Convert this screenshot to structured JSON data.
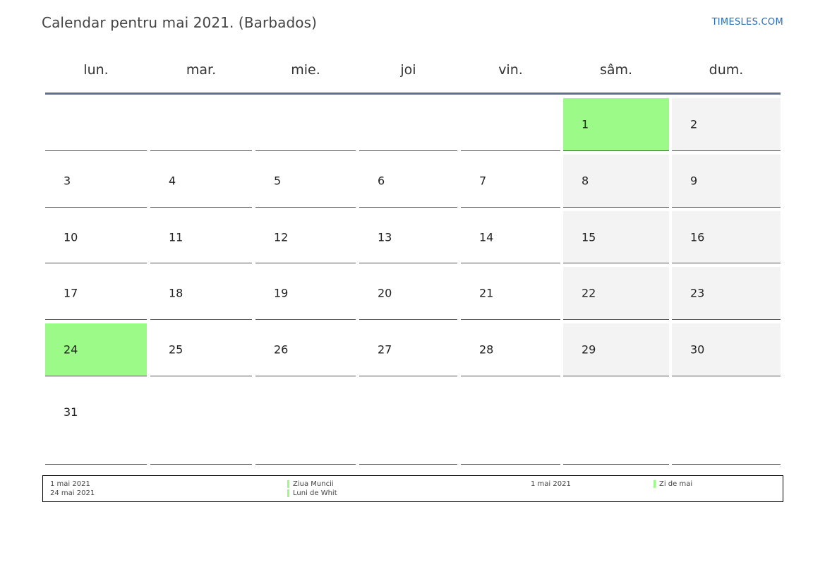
{
  "header": {
    "title": "Calendar pentru mai 2021. (Barbados)",
    "brand": "TIMESLES.COM"
  },
  "colors": {
    "holiday": "#9cfa88",
    "weekend": "#f3f3f3",
    "rule": "#5a7394",
    "brand": "#2b6cb0"
  },
  "calendar": {
    "weekdays": [
      "lun.",
      "mar.",
      "mie.",
      "joi",
      "vin.",
      "sâm.",
      "dum."
    ],
    "weeks": [
      [
        null,
        null,
        null,
        null,
        null,
        {
          "day": "1",
          "holiday": true
        },
        {
          "day": "2"
        }
      ],
      [
        {
          "day": "3"
        },
        {
          "day": "4"
        },
        {
          "day": "5"
        },
        {
          "day": "6"
        },
        {
          "day": "7"
        },
        {
          "day": "8"
        },
        {
          "day": "9"
        }
      ],
      [
        {
          "day": "10"
        },
        {
          "day": "11"
        },
        {
          "day": "12"
        },
        {
          "day": "13"
        },
        {
          "day": "14"
        },
        {
          "day": "15"
        },
        {
          "day": "16"
        }
      ],
      [
        {
          "day": "17"
        },
        {
          "day": "18"
        },
        {
          "day": "19"
        },
        {
          "day": "20"
        },
        {
          "day": "21"
        },
        {
          "day": "22"
        },
        {
          "day": "23"
        }
      ],
      [
        {
          "day": "24",
          "holiday": true
        },
        {
          "day": "25"
        },
        {
          "day": "26"
        },
        {
          "day": "27"
        },
        {
          "day": "28"
        },
        {
          "day": "29"
        },
        {
          "day": "30"
        }
      ],
      [
        {
          "day": "31"
        },
        null,
        null,
        null,
        null,
        null,
        null
      ]
    ]
  },
  "legend": {
    "holidays": [
      {
        "date": "1 mai 2021",
        "name": "Ziua Muncii"
      },
      {
        "date": "24 mai 2021",
        "name": "Luni de Whit"
      }
    ],
    "observances": [
      {
        "date": "1 mai 2021",
        "name": "Zi de mai"
      }
    ]
  }
}
